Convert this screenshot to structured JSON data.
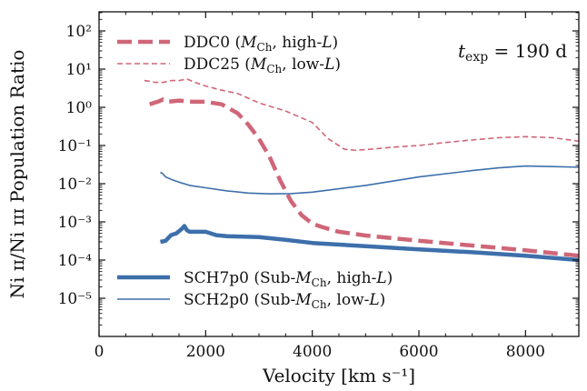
{
  "chart_data": {
    "type": "line",
    "xlabel": "Velocity [km s⁻¹]",
    "ylabel": "Ni ɪɪ/Ni ɪɪɪ Population Ratio",
    "annotation": "t_exp = 190 d",
    "xlim": [
      0,
      9000
    ],
    "ylim_log10": [
      -6,
      2.5
    ],
    "y_scale": "log",
    "grid": false,
    "legend_top_placement": "top-left",
    "legend_bottom_placement": "bottom-left",
    "x_ticks": [
      0,
      2000,
      4000,
      6000,
      8000
    ],
    "x_tick_labels": [
      "0",
      "2000",
      "4000",
      "6000",
      "8000"
    ],
    "y_ticks_log10": [
      2,
      1,
      0,
      -1,
      -2,
      -3,
      -4,
      -5
    ],
    "y_tick_labels": [
      "10²",
      "10¹",
      "10⁰",
      "10⁻¹",
      "10⁻²",
      "10⁻³",
      "10⁻⁴",
      "10⁻⁵"
    ],
    "series": [
      {
        "name": "DDC0 (M_Ch, high-L)",
        "name_parts": [
          "DDC0 (",
          "M",
          "Ch",
          ", high-",
          "L",
          ")"
        ],
        "color": "#cf6677",
        "style": "dashed-thick",
        "legend": "top",
        "x": [
          950,
          1100,
          1200,
          1300,
          1500,
          1700,
          2000,
          2300,
          2600,
          2800,
          3000,
          3200,
          3400,
          3600,
          3800,
          4000,
          4200,
          4500,
          5000,
          6000,
          7000,
          8000,
          9000
        ],
        "y": [
          1.2,
          1.4,
          1.6,
          1.4,
          1.5,
          1.4,
          1.4,
          1.2,
          0.7,
          0.35,
          0.15,
          0.05,
          0.012,
          0.0035,
          0.0015,
          0.0009,
          0.00072,
          0.00055,
          0.00044,
          0.00032,
          0.00024,
          0.00018,
          0.00013
        ]
      },
      {
        "name": "DDC25 (M_Ch, low-L)",
        "name_parts": [
          "DDC25 (",
          "M",
          "Ch",
          ", low-",
          "L",
          ")"
        ],
        "color": "#cf6677",
        "style": "dashed-thin",
        "legend": "top",
        "x": [
          850,
          950,
          1050,
          1200,
          1350,
          1500,
          1650,
          1800,
          2000,
          2300,
          2600,
          3000,
          3500,
          4000,
          4300,
          4600,
          4800,
          5100,
          5500,
          6000,
          6500,
          7000,
          7500,
          8000,
          8500,
          9000
        ],
        "y": [
          5,
          4.8,
          4.5,
          4.5,
          5,
          5,
          5.5,
          4.5,
          3.6,
          2.8,
          2.3,
          1.3,
          0.8,
          0.4,
          0.15,
          0.08,
          0.075,
          0.08,
          0.09,
          0.1,
          0.12,
          0.14,
          0.16,
          0.17,
          0.16,
          0.13
        ]
      },
      {
        "name": "SCH7p0 (Sub-M_Ch, high-L)",
        "name_parts": [
          "SCH7p0 (Sub-",
          "M",
          "Ch",
          ", high-",
          "L",
          ")"
        ],
        "color": "#3d6fab",
        "style": "solid-thick",
        "legend": "bottom",
        "x": [
          1150,
          1250,
          1350,
          1450,
          1550,
          1600,
          1650,
          1700,
          1800,
          2000,
          2200,
          2400,
          2700,
          3000,
          3500,
          4000,
          5000,
          6000,
          7000,
          8000,
          9000
        ],
        "y": [
          0.0003,
          0.00032,
          0.00045,
          0.0005,
          0.00065,
          0.00078,
          0.0006,
          0.00055,
          0.00055,
          0.00055,
          0.00045,
          0.00042,
          0.00041,
          0.0004,
          0.00034,
          0.00028,
          0.00023,
          0.00019,
          0.00016,
          0.00013,
          0.0001
        ]
      },
      {
        "name": "SCH2p0 (Sub-M_Ch, low-L)",
        "name_parts": [
          "SCH2p0 (Sub-",
          "M",
          "Ch",
          ", low-",
          "L",
          ")"
        ],
        "color": "#3d6fab",
        "style": "solid-thin",
        "legend": "bottom",
        "x": [
          1150,
          1200,
          1250,
          1350,
          1500,
          1700,
          2000,
          2400,
          2800,
          3200,
          3600,
          4000,
          5000,
          6000,
          7000,
          7500,
          8000,
          8500,
          9000
        ],
        "y": [
          0.02,
          0.018,
          0.015,
          0.013,
          0.011,
          0.009,
          0.0078,
          0.0065,
          0.0057,
          0.0054,
          0.0055,
          0.006,
          0.009,
          0.015,
          0.022,
          0.026,
          0.029,
          0.028,
          0.027
        ]
      }
    ]
  }
}
